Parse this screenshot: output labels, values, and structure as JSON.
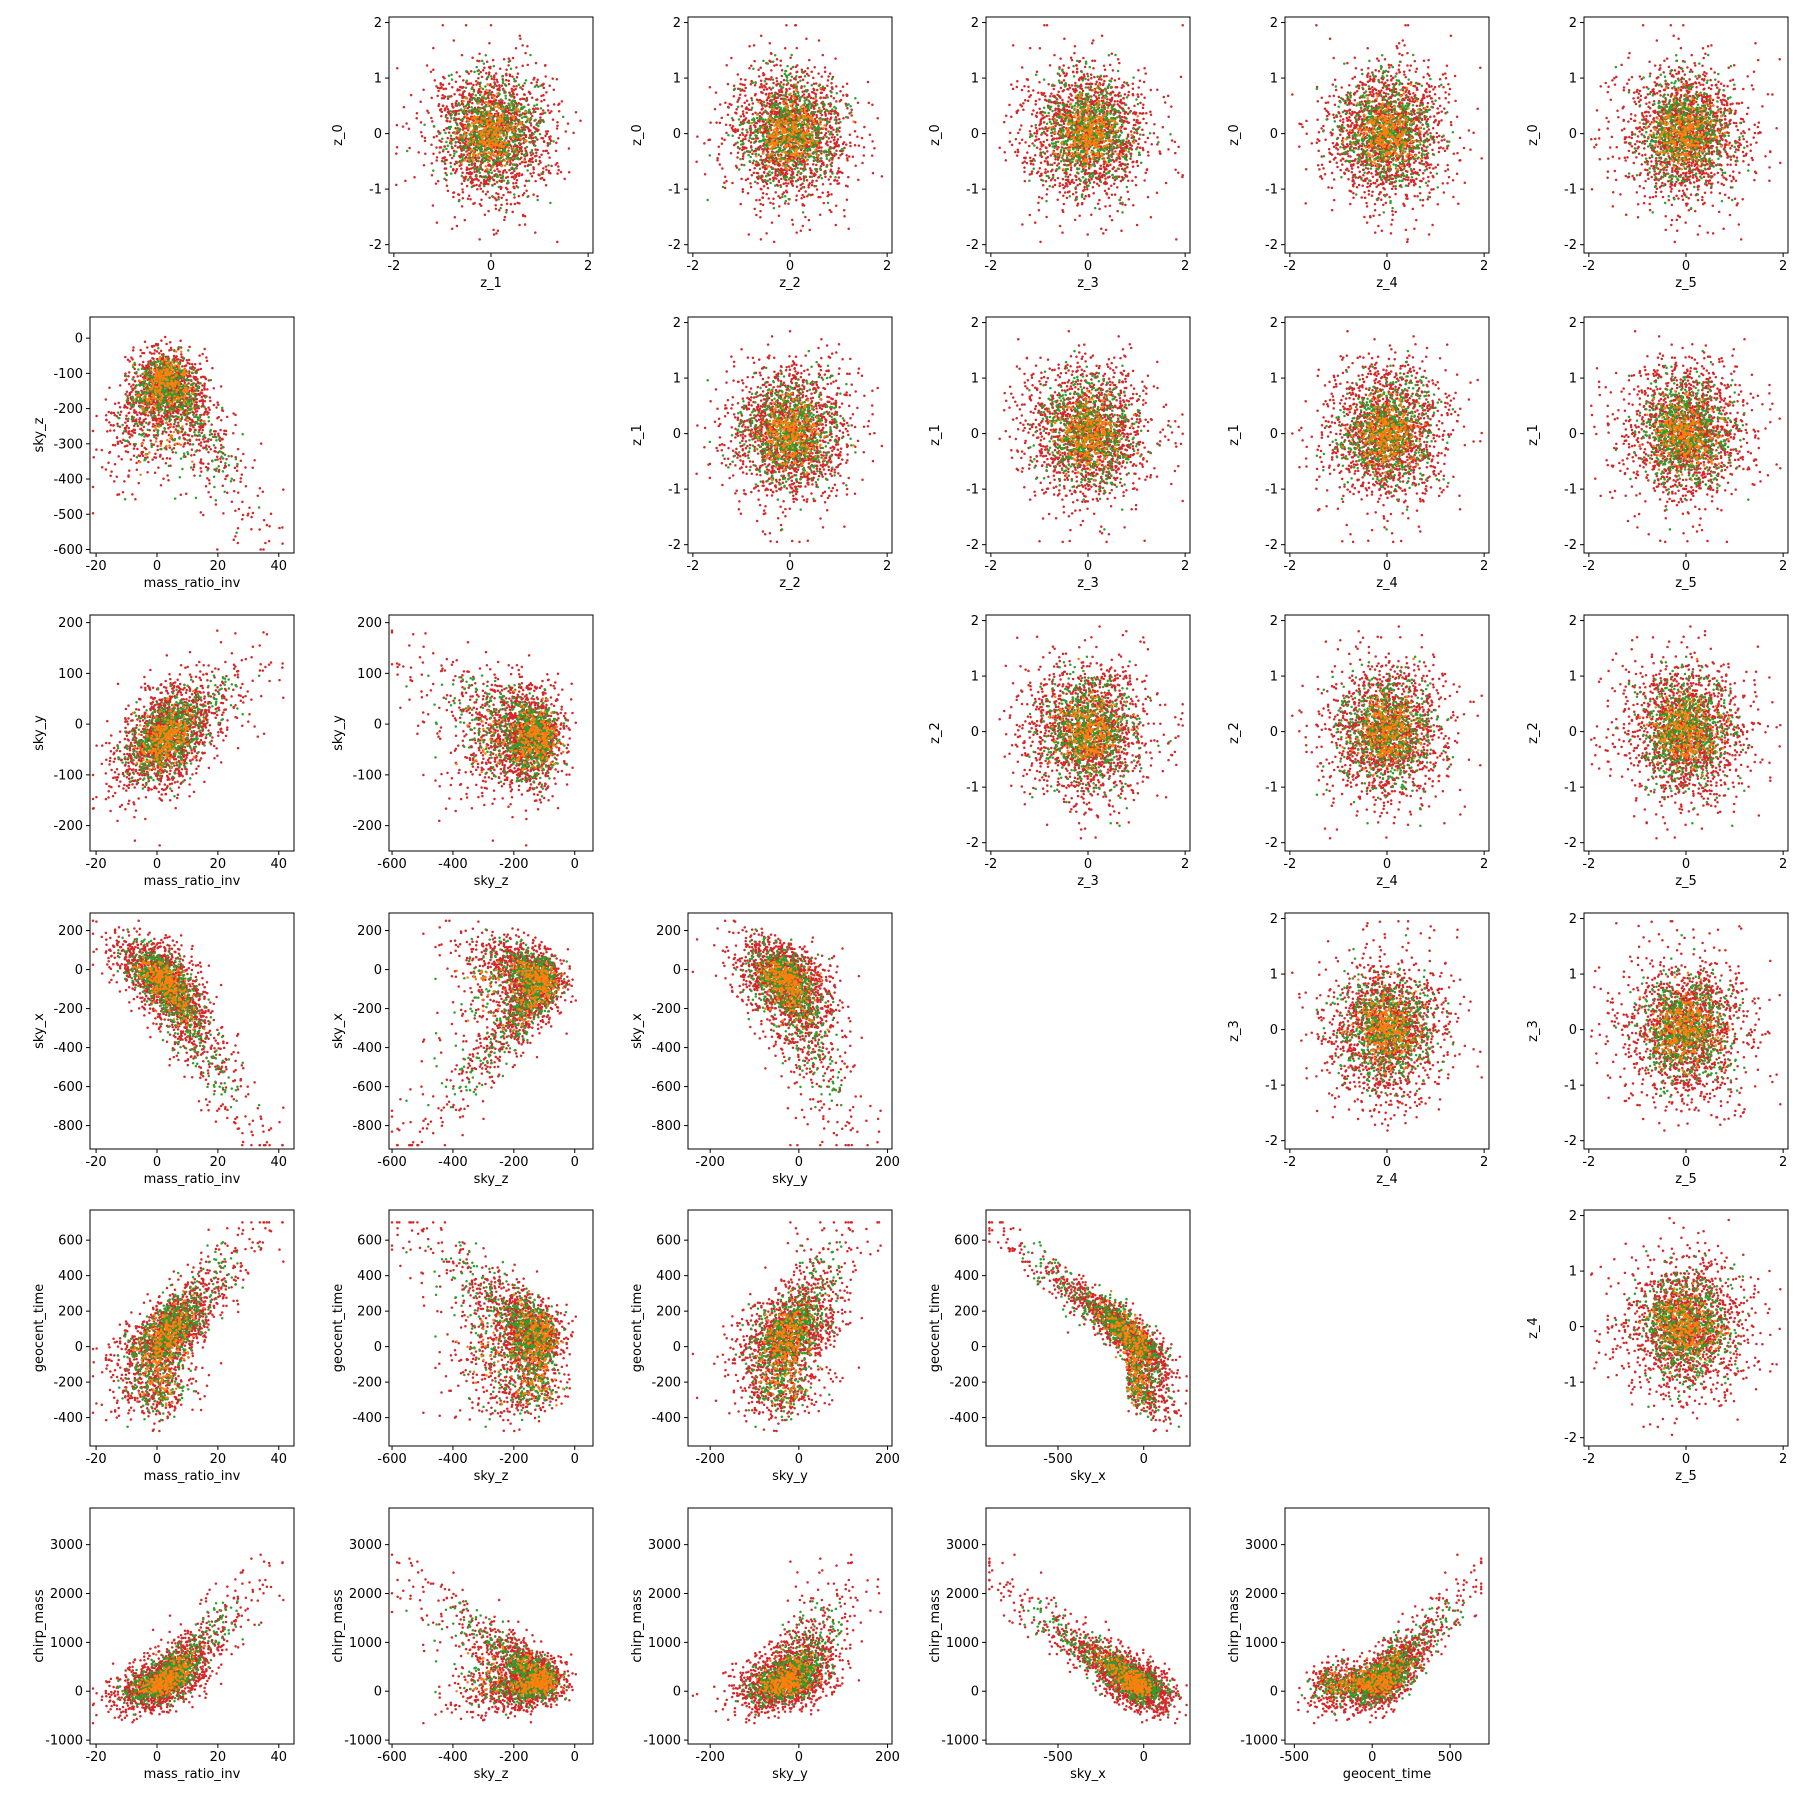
{
  "colors": {
    "red": "#d62728",
    "green": "#2ca02c",
    "orange": "#ff7f0e"
  },
  "chart_data": {
    "type": "scatter",
    "layout": "pair-plot grid, 6 rows x 6 columns; empty panels on the diagonal and in the bottom-right corner",
    "point_counts": {
      "red": 1500,
      "green": 600,
      "orange": 260
    },
    "variables": {
      "mass_ratio_inv": {
        "label": "mass_ratio_inv",
        "range": [
          -22,
          45
        ],
        "ticks": [
          -20,
          0,
          20,
          40
        ]
      },
      "sky_z": {
        "label": "sky_z",
        "range": [
          -610,
          60
        ],
        "ticks": [
          -600,
          -400,
          -200,
          0
        ]
      },
      "sky_y": {
        "label": "sky_y",
        "range": [
          -250,
          210
        ],
        "ticks": [
          -200,
          0,
          200
        ]
      },
      "sky_x": {
        "label": "sky_x",
        "range": [
          -920,
          270
        ],
        "ticks": [
          -500,
          0
        ]
      },
      "geocent_time": {
        "label": "geocent_time",
        "range": [
          -560,
          750
        ],
        "ticks": [
          -500,
          0,
          500
        ]
      },
      "z_1": {
        "label": "z_1",
        "range": [
          -2.1,
          2.1
        ],
        "ticks": [
          -2,
          0,
          2
        ]
      },
      "z_2": {
        "label": "z_2",
        "range": [
          -2.1,
          2.1
        ],
        "ticks": [
          -2,
          0,
          2
        ]
      },
      "z_3": {
        "label": "z_3",
        "range": [
          -2.1,
          2.1
        ],
        "ticks": [
          -2,
          0,
          2
        ]
      },
      "z_4": {
        "label": "z_4",
        "range": [
          -2.1,
          2.1
        ],
        "ticks": [
          -2,
          0,
          2
        ]
      },
      "z_5": {
        "label": "z_5",
        "range": [
          -2.1,
          2.1
        ],
        "ticks": [
          -2,
          0,
          2
        ]
      },
      "z_0": {
        "label": "z_0",
        "range": [
          -2.15,
          2.1
        ],
        "ticks": [
          -2,
          -1,
          0,
          1,
          2
        ]
      },
      "z_1y": {
        "label": "z_1",
        "range": [
          -2.15,
          2.1
        ],
        "ticks": [
          -2,
          -1,
          0,
          1,
          2
        ]
      },
      "z_2y": {
        "label": "z_2",
        "range": [
          -2.15,
          2.1
        ],
        "ticks": [
          -2,
          -1,
          0,
          1,
          2
        ]
      },
      "z_3y": {
        "label": "z_3",
        "range": [
          -2.15,
          2.1
        ],
        "ticks": [
          -2,
          -1,
          0,
          1,
          2
        ]
      },
      "z_4y": {
        "label": "z_4",
        "range": [
          -2.15,
          2.1
        ],
        "ticks": [
          -2,
          -1,
          0,
          1,
          2
        ]
      },
      "sky_zy": {
        "label": "sky_z",
        "range": [
          -610,
          60
        ],
        "ticks": [
          -600,
          -500,
          -400,
          -300,
          -200,
          -100,
          0
        ]
      },
      "sky_yy": {
        "label": "sky_y",
        "range": [
          -250,
          215
        ],
        "ticks": [
          -200,
          -100,
          0,
          100,
          200
        ]
      },
      "sky_xy": {
        "label": "sky_x",
        "range": [
          -920,
          290
        ],
        "ticks": [
          -800,
          -600,
          -400,
          -200,
          0,
          200
        ]
      },
      "geocent_timey": {
        "label": "geocent_time",
        "range": [
          -560,
          770
        ],
        "ticks": [
          -400,
          -200,
          0,
          200,
          400,
          600
        ]
      },
      "chirp_massy": {
        "label": "chirp_mass",
        "range": [
          -1080,
          3750
        ],
        "ticks": [
          -1000,
          0,
          1000,
          2000,
          3000
        ]
      }
    },
    "panels": [
      {
        "row": 0,
        "col": 1,
        "x": "z_1",
        "y": "z_0",
        "shape": "blob"
      },
      {
        "row": 0,
        "col": 2,
        "x": "z_2",
        "y": "z_0",
        "shape": "blob"
      },
      {
        "row": 0,
        "col": 3,
        "x": "z_3",
        "y": "z_0",
        "shape": "blob"
      },
      {
        "row": 0,
        "col": 4,
        "x": "z_4",
        "y": "z_0",
        "shape": "blob"
      },
      {
        "row": 0,
        "col": 5,
        "x": "z_5",
        "y": "z_0",
        "shape": "blob"
      },
      {
        "row": 1,
        "col": 0,
        "x": "mass_ratio_inv",
        "y": "sky_zy",
        "shape": "corr"
      },
      {
        "row": 1,
        "col": 2,
        "x": "z_2",
        "y": "z_1y",
        "shape": "blob"
      },
      {
        "row": 1,
        "col": 3,
        "x": "z_3",
        "y": "z_1y",
        "shape": "blob"
      },
      {
        "row": 1,
        "col": 4,
        "x": "z_4",
        "y": "z_1y",
        "shape": "blob"
      },
      {
        "row": 1,
        "col": 5,
        "x": "z_5",
        "y": "z_1y",
        "shape": "blob"
      },
      {
        "row": 2,
        "col": 0,
        "x": "mass_ratio_inv",
        "y": "sky_yy",
        "shape": "corr"
      },
      {
        "row": 2,
        "col": 1,
        "x": "sky_z",
        "y": "sky_yy",
        "shape": "corr"
      },
      {
        "row": 2,
        "col": 3,
        "x": "z_3",
        "y": "z_2y",
        "shape": "blob"
      },
      {
        "row": 2,
        "col": 4,
        "x": "z_4",
        "y": "z_2y",
        "shape": "blob"
      },
      {
        "row": 2,
        "col": 5,
        "x": "z_5",
        "y": "z_2y",
        "shape": "blob"
      },
      {
        "row": 3,
        "col": 0,
        "x": "mass_ratio_inv",
        "y": "sky_xy",
        "shape": "corr"
      },
      {
        "row": 3,
        "col": 1,
        "x": "sky_z",
        "y": "sky_xy",
        "shape": "corr"
      },
      {
        "row": 3,
        "col": 2,
        "x": "sky_y",
        "y": "sky_xy",
        "shape": "corr"
      },
      {
        "row": 3,
        "col": 4,
        "x": "z_4",
        "y": "z_3y",
        "shape": "blob"
      },
      {
        "row": 3,
        "col": 5,
        "x": "z_5",
        "y": "z_3y",
        "shape": "blob"
      },
      {
        "row": 4,
        "col": 0,
        "x": "mass_ratio_inv",
        "y": "geocent_timey",
        "shape": "corr"
      },
      {
        "row": 4,
        "col": 1,
        "x": "sky_z",
        "y": "geocent_timey",
        "shape": "corr"
      },
      {
        "row": 4,
        "col": 2,
        "x": "sky_y",
        "y": "geocent_timey",
        "shape": "corr"
      },
      {
        "row": 4,
        "col": 3,
        "x": "sky_x",
        "y": "geocent_timey",
        "shape": "corr"
      },
      {
        "row": 4,
        "col": 5,
        "x": "z_5",
        "y": "z_4y",
        "shape": "blob"
      },
      {
        "row": 5,
        "col": 0,
        "x": "mass_ratio_inv",
        "y": "chirp_massy",
        "shape": "corr"
      },
      {
        "row": 5,
        "col": 1,
        "x": "sky_z",
        "y": "chirp_massy",
        "shape": "corr"
      },
      {
        "row": 5,
        "col": 2,
        "x": "sky_y",
        "y": "chirp_massy",
        "shape": "corr"
      },
      {
        "row": 5,
        "col": 3,
        "x": "sky_x",
        "y": "chirp_massy",
        "shape": "corr"
      },
      {
        "row": 5,
        "col": 4,
        "x": "geocent_time",
        "y": "chirp_massy",
        "shape": "corr"
      }
    ],
    "grid": false,
    "legend": "none"
  }
}
